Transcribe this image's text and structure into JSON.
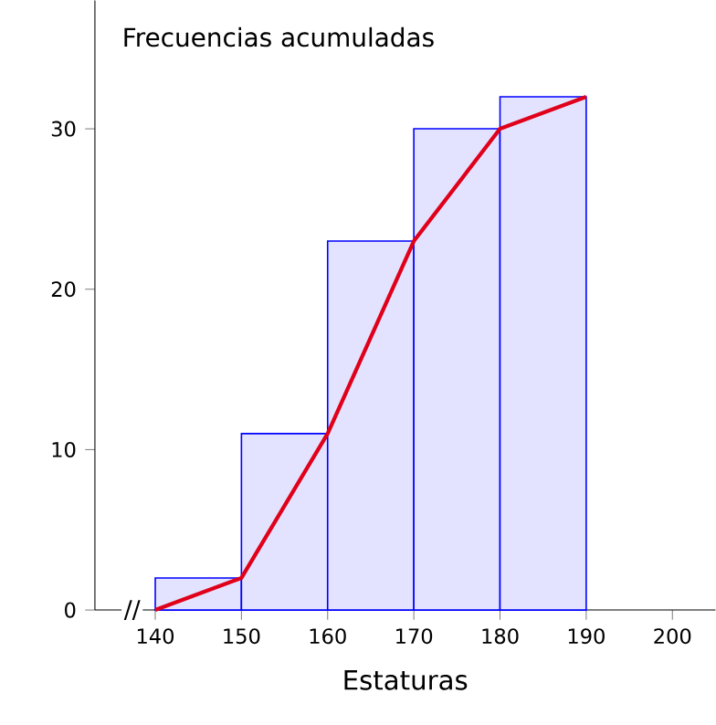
{
  "chart_data": {
    "type": "histogram",
    "title": "Frecuencias acumuladas",
    "xlabel": "Estaturas",
    "series": [
      {
        "bins": [
          140,
          150,
          160,
          170,
          180,
          190
        ],
        "values": [
          2,
          11,
          23,
          30,
          32
        ],
        "color": "#0000ff"
      },
      {
        "type": "line",
        "x": [
          140,
          150,
          160,
          170,
          180,
          190
        ],
        "values": [
          0,
          2,
          11,
          23,
          30,
          32
        ],
        "color": "#e0001a"
      }
    ],
    "annotations": [
      "//"
    ],
    "xlim": [
      133,
      205
    ],
    "ylim": [
      0,
      38
    ],
    "xticks": [
      140,
      150,
      160,
      170,
      180,
      190,
      200
    ],
    "yticks": [
      0,
      10,
      20,
      30
    ],
    "grid": false,
    "marker": "none",
    "line_style": "solid"
  }
}
